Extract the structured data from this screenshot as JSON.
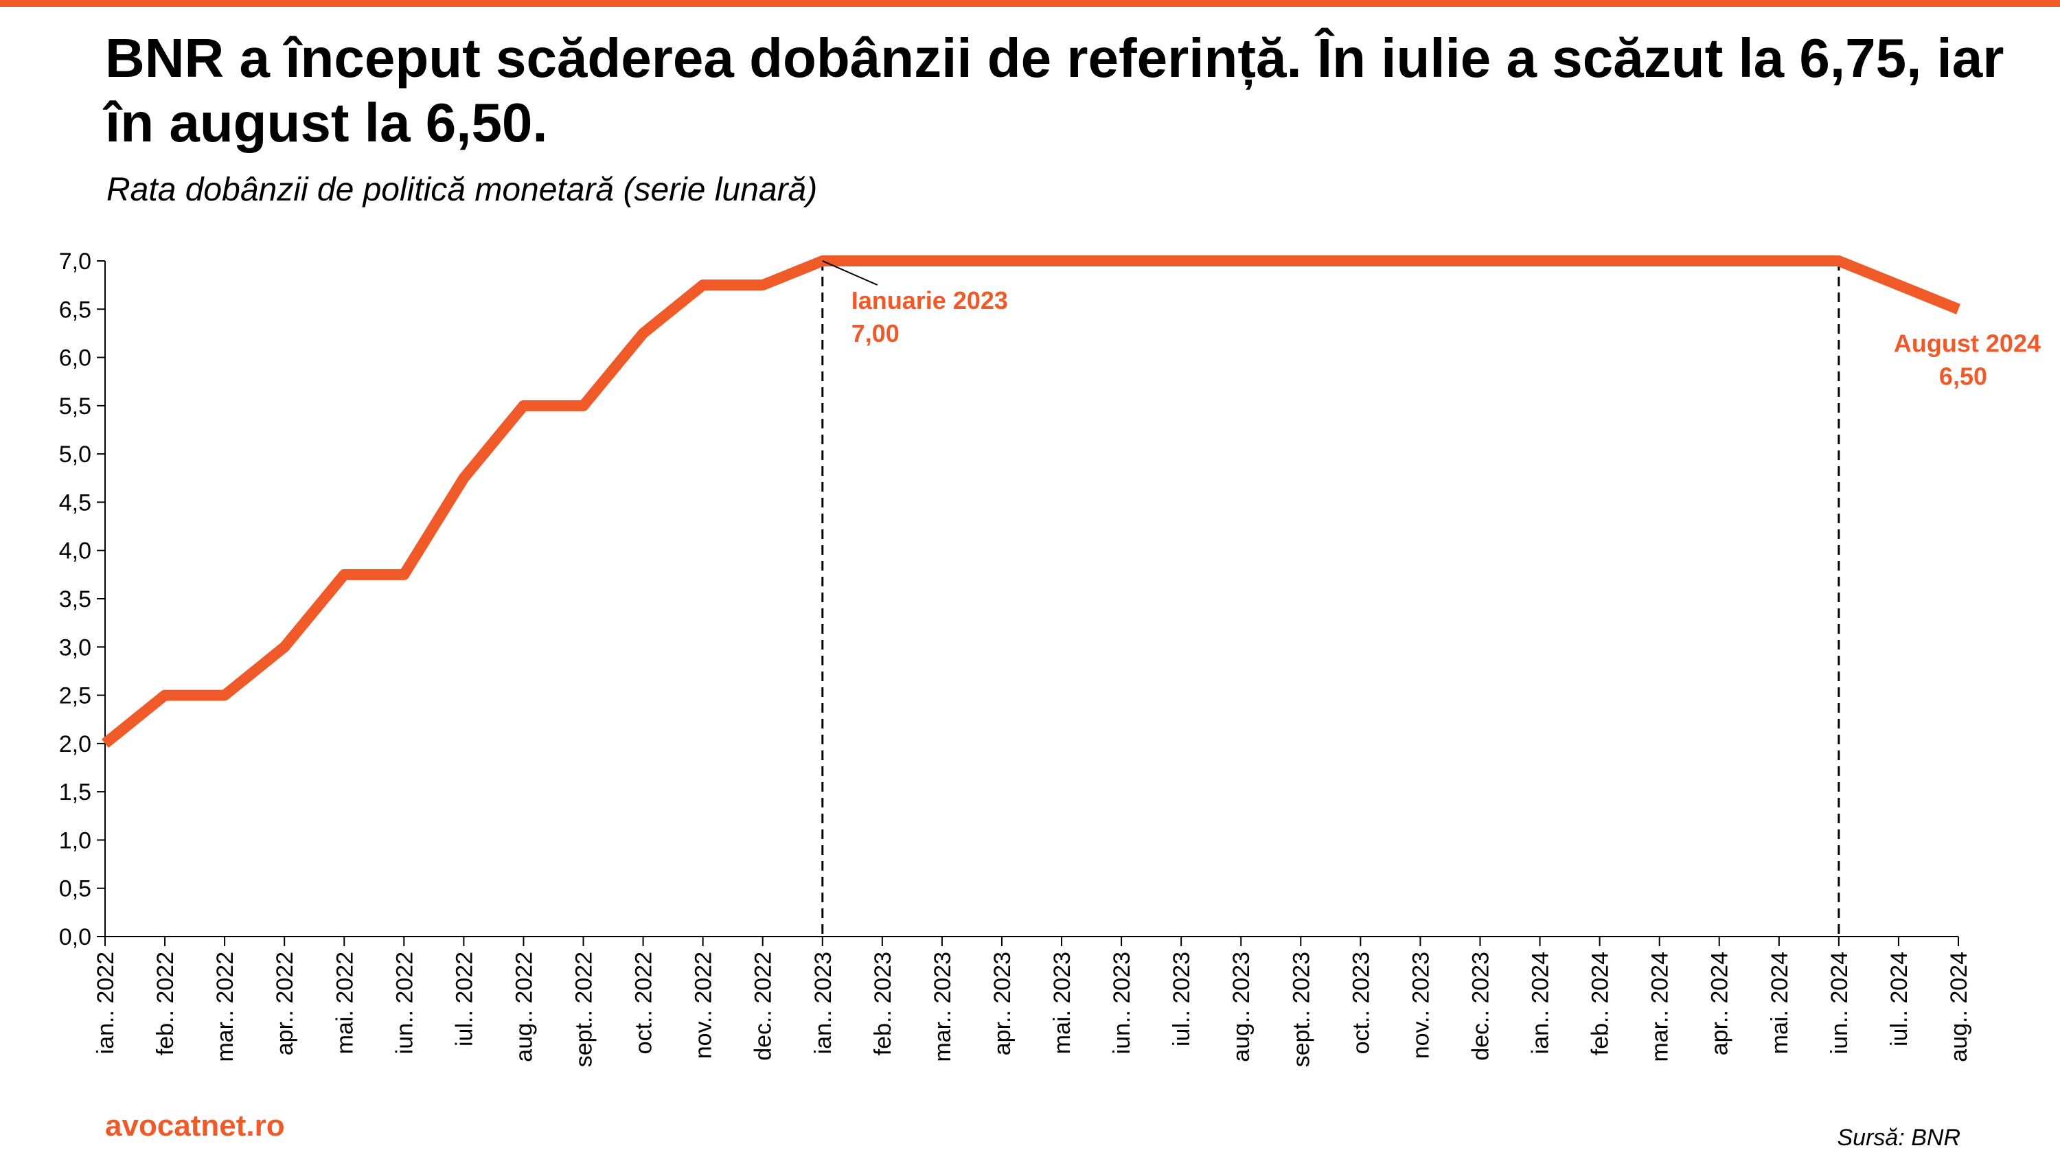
{
  "header": {
    "title": "BNR a început scăderea dobânzii de referință. În iulie a scăzut la 6,75, iar în august la 6,50.",
    "subtitle": "Rata dobânzii de politică monetară (serie lunară)"
  },
  "footer": {
    "brand": "avocatnet.ro",
    "source": "Sursă: BNR"
  },
  "colors": {
    "accent": "#F05A28",
    "text": "#000000"
  },
  "chart_data": {
    "type": "line",
    "title": "",
    "xlabel": "",
    "ylabel": "",
    "ylim": [
      0,
      7
    ],
    "yticks": [
      "0,0",
      "0,5",
      "1,0",
      "1,5",
      "2,0",
      "2,5",
      "3,0",
      "3,5",
      "4,0",
      "4,5",
      "5,0",
      "5,5",
      "6,0",
      "6,5",
      "7,0"
    ],
    "grid": false,
    "categories": [
      "ian.. 2022",
      "feb.. 2022",
      "mar.. 2022",
      "apr.. 2022",
      "mai. 2022",
      "iun.. 2022",
      "iul.. 2022",
      "aug.. 2022",
      "sept.. 2022",
      "oct.. 2022",
      "nov.. 2022",
      "dec.. 2022",
      "ian.. 2023",
      "feb.. 2023",
      "mar.. 2023",
      "apr.. 2023",
      "mai. 2023",
      "iun.. 2023",
      "iul.. 2023",
      "aug.. 2023",
      "sept.. 2023",
      "oct.. 2023",
      "nov.. 2023",
      "dec.. 2023",
      "ian.. 2024",
      "feb.. 2024",
      "mar.. 2024",
      "apr.. 2024",
      "mai. 2024",
      "iun.. 2024",
      "iul.. 2024",
      "aug.. 2024"
    ],
    "values": [
      2.0,
      2.5,
      2.5,
      3.0,
      3.75,
      3.75,
      4.75,
      5.5,
      5.5,
      6.25,
      6.75,
      6.75,
      7.0,
      7.0,
      7.0,
      7.0,
      7.0,
      7.0,
      7.0,
      7.0,
      7.0,
      7.0,
      7.0,
      7.0,
      7.0,
      7.0,
      7.0,
      7.0,
      7.0,
      7.0,
      6.75,
      6.5
    ],
    "reference_lines": [
      12,
      29
    ],
    "annotations": [
      {
        "index": 12,
        "line1": "Ianuarie 2023",
        "line2": "7,00",
        "align": "left"
      },
      {
        "index": 31,
        "line1": "August 2024",
        "line2": "6,50",
        "align": "right"
      }
    ]
  }
}
